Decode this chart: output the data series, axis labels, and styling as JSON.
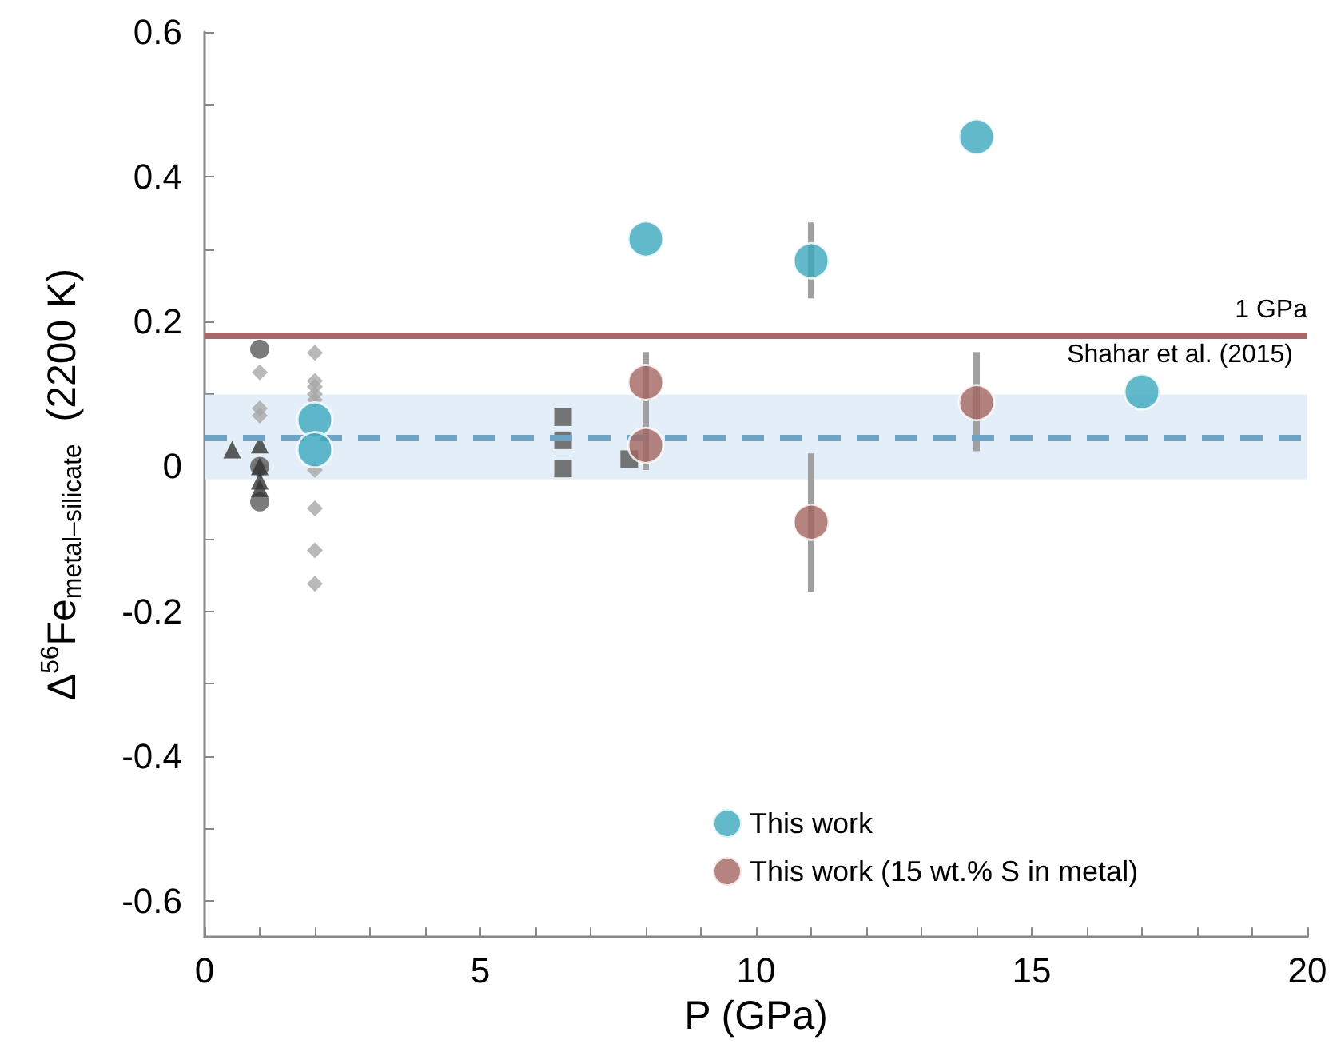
{
  "chart_data": {
    "type": "scatter",
    "xlabel": "P (GPa)",
    "ylabel": "Δ$^{56}$Fe$_{metal–silicate}$  (2200 K)",
    "xlim": [
      0,
      20
    ],
    "ylim": [
      -0.65,
      0.6
    ],
    "xticks": [
      0,
      {
        "value": 1,
        "label": null
      },
      {
        "value": 2,
        "label": null
      },
      {
        "value": 3,
        "label": null
      },
      {
        "value": 4,
        "label": null
      },
      5,
      {
        "value": 6,
        "label": null
      },
      {
        "value": 7,
        "label": null
      },
      {
        "value": 8,
        "label": null
      },
      {
        "value": 9,
        "label": null
      },
      10,
      {
        "value": 11,
        "label": null
      },
      {
        "value": 12,
        "label": null
      },
      {
        "value": 13,
        "label": null
      },
      {
        "value": 14,
        "label": null
      },
      15,
      {
        "value": 16,
        "label": null
      },
      {
        "value": 17,
        "label": null
      },
      {
        "value": 18,
        "label": null
      },
      {
        "value": 19,
        "label": null
      },
      20
    ],
    "yticks": [
      -0.6,
      {
        "value": -0.5,
        "label": null
      },
      -0.4,
      {
        "value": -0.3,
        "label": null
      },
      -0.2,
      {
        "value": -0.1,
        "label": null
      },
      0,
      {
        "value": 0.1,
        "label": null
      },
      0.2,
      {
        "value": 0.3,
        "label": null
      },
      0.4,
      {
        "value": 0.5,
        "label": null
      },
      0.6
    ],
    "grid": false,
    "legend": "bottom",
    "series": [
      {
        "color": "#a8a8a8",
        "marker": "diamond",
        "x": [
          1,
          1,
          1,
          1,
          2,
          2,
          2,
          2,
          2,
          2,
          2,
          2,
          2
        ],
        "values": [
          0.13,
          0.08,
          0.07,
          0.0,
          0.157,
          0.118,
          0.11,
          0.1,
          0.092,
          -0.005,
          -0.058,
          -0.116,
          -0.162
        ]
      },
      {
        "color": "#5a5a5a",
        "marker": "circle",
        "x": [
          1,
          1,
          1
        ],
        "values": [
          0.162,
          0.0,
          -0.049
        ]
      },
      {
        "color": "#333333",
        "marker": "triangle",
        "x": [
          0.5,
          1,
          1,
          1,
          1
        ],
        "values": [
          0.023,
          0.03,
          0.0,
          -0.02,
          -0.03
        ]
      },
      {
        "color": "#555555",
        "marker": "square",
        "x": [
          6.5,
          6.5,
          6.5,
          7.7
        ],
        "values": [
          0.068,
          0.036,
          -0.003,
          0.01
        ]
      },
      {
        "name": "This work",
        "color": "#3ba8bd",
        "marker": "circle",
        "x": [
          2,
          2,
          8,
          11,
          14,
          17
        ],
        "values": [
          0.064,
          0.023,
          0.314,
          0.284,
          0.455,
          0.103
        ],
        "errors": [
          null,
          null,
          null,
          [
            0.232,
            0.337
          ],
          null,
          null
        ]
      },
      {
        "name": "This work (15 wt.% S in metal)",
        "color": "#a36560",
        "marker": "circle",
        "x": [
          8,
          8,
          11,
          14
        ],
        "values": [
          0.116,
          0.029,
          -0.077,
          0.088
        ],
        "errors": [
          [
            -0.005,
            0.158
          ],
          null,
          [
            -0.173,
            0.018
          ],
          [
            0.021,
            0.158
          ]
        ]
      }
    ],
    "ref_lines": [
      {
        "axis": "y",
        "value": 0.185,
        "label": "1 GPa",
        "color": "#a8686a",
        "line_style": "solid"
      },
      {
        "axis": "y",
        "value": 0.04,
        "color": "#6fa3c4",
        "line_style": "dashed"
      }
    ],
    "bands": [
      {
        "axis": "y",
        "from": -0.018,
        "to": 0.099,
        "label": "Shahar et al. (2015)",
        "color": "#e3eef8"
      }
    ]
  }
}
